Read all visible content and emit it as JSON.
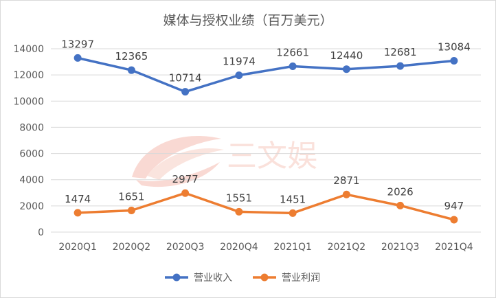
{
  "chart_data": {
    "type": "line",
    "title": "媒体与授权业绩（百万美元）",
    "categories": [
      "2020Q1",
      "2020Q2",
      "2020Q3",
      "2020Q4",
      "2021Q1",
      "2021Q2",
      "2021Q3",
      "2021Q4"
    ],
    "ylim": [
      0,
      14000
    ],
    "yticks": [
      0,
      2000,
      4000,
      6000,
      8000,
      10000,
      12000,
      14000
    ],
    "grid": true,
    "legend_position": "bottom",
    "series": [
      {
        "name": "营业收入",
        "color": "#4472c4",
        "values": [
          13297,
          12365,
          10714,
          11974,
          12661,
          12440,
          12681,
          13084
        ]
      },
      {
        "name": "营业利润",
        "color": "#ed7d31",
        "values": [
          1474,
          1651,
          2977,
          1551,
          1451,
          2871,
          2026,
          947
        ]
      }
    ]
  },
  "watermark": {
    "text": "三文娱",
    "color": "#f6c9bf"
  }
}
